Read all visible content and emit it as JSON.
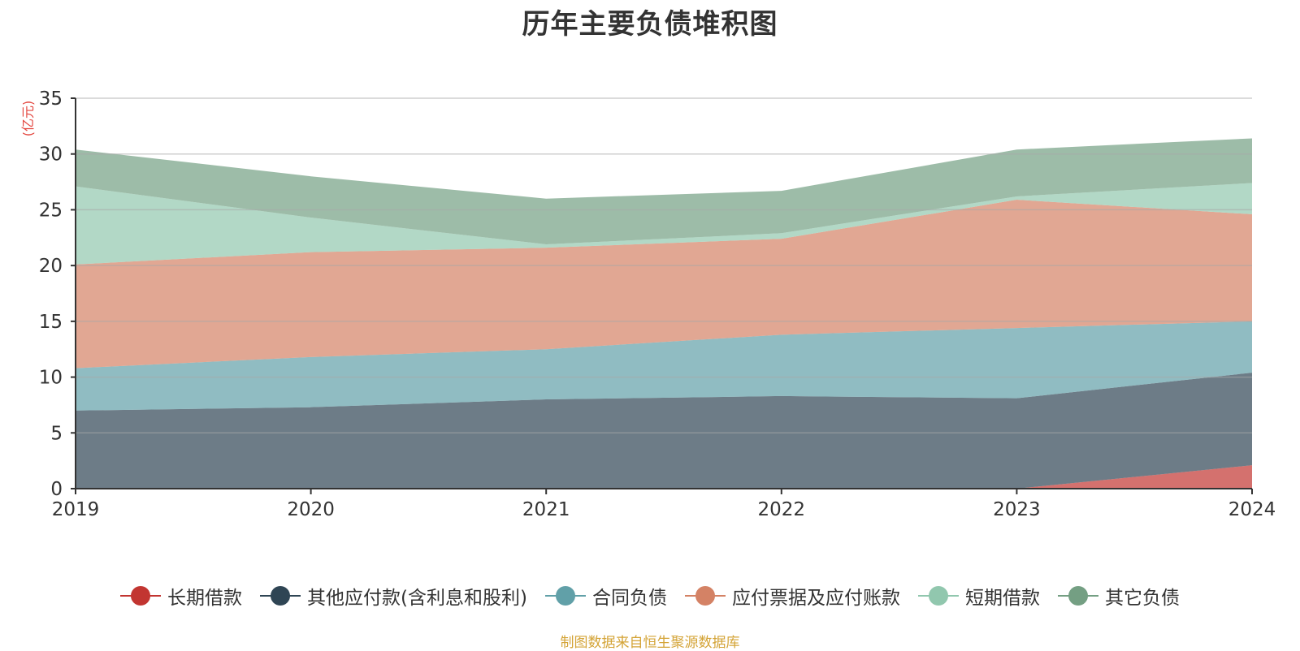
{
  "chart_data": {
    "type": "area",
    "stacked": true,
    "title": "历年主要负债堆积图",
    "unit_label": "(亿元)",
    "x": [
      "2019",
      "2020",
      "2021",
      "2022",
      "2023",
      "2024"
    ],
    "ylim": [
      0,
      35
    ],
    "yticks": [
      0,
      5,
      10,
      15,
      20,
      25,
      30,
      35
    ],
    "grid": true,
    "legend_position": "bottom",
    "series": [
      {
        "name": "长期借款",
        "color": "#c23531",
        "values": [
          0,
          0,
          0,
          0,
          0,
          2.1
        ]
      },
      {
        "name": "其他应付款(含利息和股利)",
        "color": "#2f4554",
        "values": [
          7.0,
          7.3,
          8.0,
          8.3,
          8.1,
          8.3
        ]
      },
      {
        "name": "合同负债",
        "color": "#61a0a8",
        "values": [
          3.8,
          4.5,
          4.5,
          5.5,
          6.3,
          4.6
        ]
      },
      {
        "name": "应付票据及应付账款",
        "color": "#d48265",
        "values": [
          9.3,
          9.4,
          9.1,
          8.6,
          11.5,
          9.6
        ]
      },
      {
        "name": "短期借款",
        "color": "#91c7ae",
        "values": [
          7.0,
          3.1,
          0.3,
          0.5,
          0.3,
          2.8
        ]
      },
      {
        "name": "其它负债",
        "color": "#749f83",
        "values": [
          3.3,
          3.7,
          4.1,
          3.8,
          4.2,
          4.0
        ]
      }
    ]
  },
  "footer": {
    "source": "制图数据来自恒生聚源数据库"
  }
}
